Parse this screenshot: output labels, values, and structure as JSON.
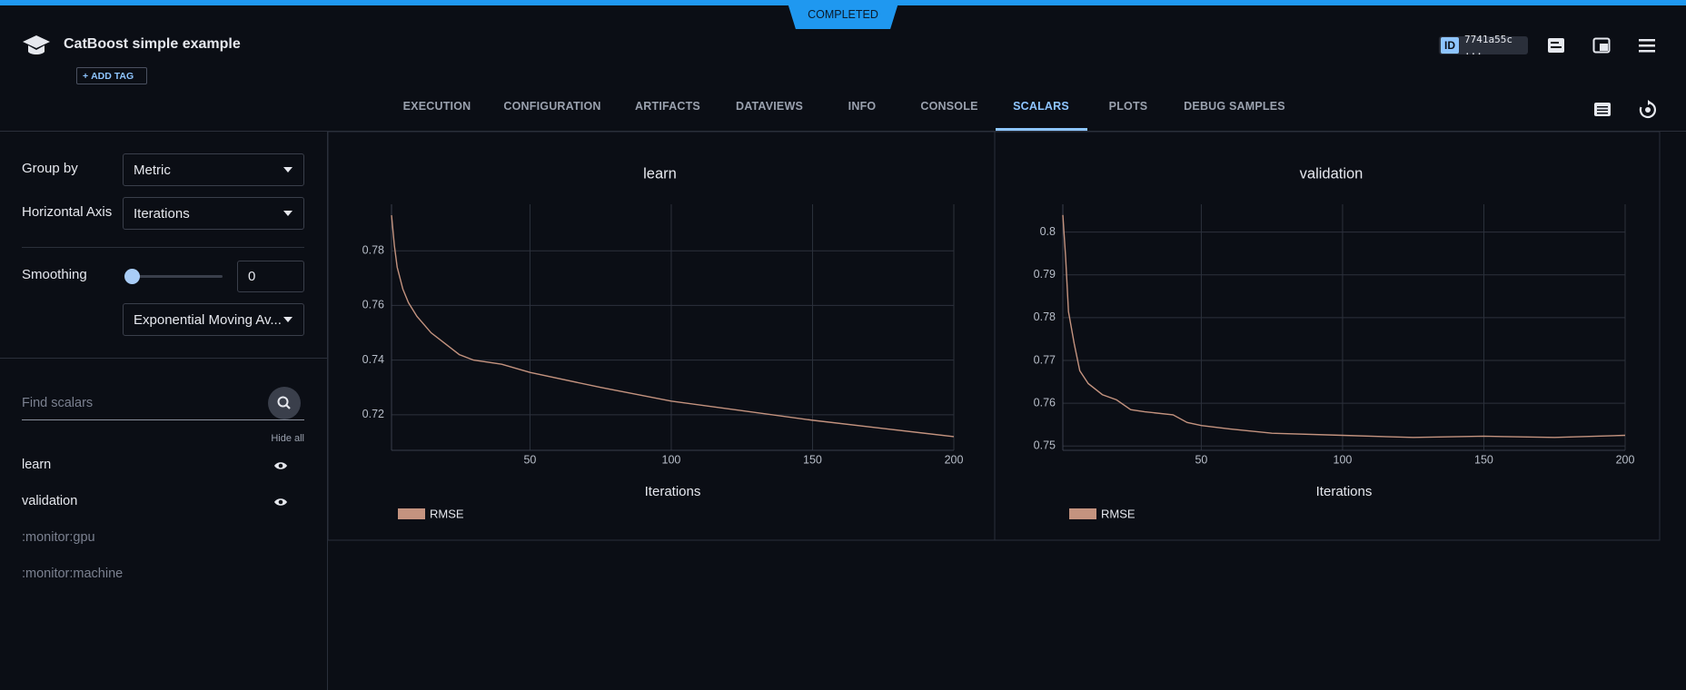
{
  "header": {
    "status": "COMPLETED",
    "title": "CatBoost simple example",
    "add_tag": "ADD TAG",
    "id_label": "ID",
    "id": "7741a55c ..."
  },
  "tabs": {
    "items": [
      "EXECUTION",
      "CONFIGURATION",
      "ARTIFACTS",
      "DATAVIEWS",
      "INFO",
      "CONSOLE",
      "SCALARS",
      "PLOTS",
      "DEBUG SAMPLES"
    ],
    "active": 6
  },
  "sidebar": {
    "group_by_label": "Group by",
    "group_by": "Metric",
    "horizontal_axis_label": "Horizontal Axis",
    "horizontal_axis": "Iterations",
    "smoothing_label": "Smoothing",
    "smoothing": 0,
    "smoothing_method": "Exponential Moving Av...",
    "search_placeholder": "Find scalars",
    "hide_all": "Hide all",
    "scalars": [
      {
        "name": "learn",
        "visible": true
      },
      {
        "name": "validation",
        "visible": true
      },
      {
        "name": ":monitor:gpu",
        "visible": false
      },
      {
        "name": ":monitor:machine",
        "visible": false
      }
    ]
  },
  "chart_data": [
    {
      "type": "line",
      "title": "learn",
      "x_label": "Iterations",
      "x": [
        1,
        2,
        3,
        5,
        7,
        10,
        15,
        20,
        25,
        30,
        40,
        50,
        75,
        100,
        125,
        150,
        175,
        200
      ],
      "series": [
        {
          "name": "RMSE",
          "color": "#c4937f",
          "values": [
            0.793,
            0.782,
            0.774,
            0.766,
            0.761,
            0.756,
            0.75,
            0.746,
            0.742,
            0.74,
            0.7385,
            0.7355,
            0.73,
            0.725,
            0.7215,
            0.718,
            0.715,
            0.712
          ]
        }
      ],
      "xlim": [
        1,
        200
      ],
      "xticks": [
        50,
        100,
        150,
        200
      ],
      "ylim": [
        0.707,
        0.797
      ],
      "yticks": [
        0.72,
        0.74,
        0.76,
        0.78
      ],
      "grid": true
    },
    {
      "type": "line",
      "title": "validation",
      "x_label": "Iterations",
      "x": [
        1,
        2,
        3,
        5,
        7,
        10,
        15,
        20,
        25,
        30,
        40,
        45,
        50,
        60,
        75,
        100,
        125,
        150,
        175,
        200
      ],
      "series": [
        {
          "name": "RMSE",
          "color": "#c4937f",
          "values": [
            0.804,
            0.794,
            0.7814,
            0.774,
            0.7676,
            0.7646,
            0.762,
            0.7608,
            0.7585,
            0.758,
            0.7573,
            0.7555,
            0.7548,
            0.754,
            0.753,
            0.7525,
            0.752,
            0.7523,
            0.752,
            0.7525
          ]
        }
      ],
      "xlim": [
        1,
        200
      ],
      "xticks": [
        50,
        100,
        150,
        200
      ],
      "ylim": [
        0.749,
        0.8065
      ],
      "yticks": [
        0.75,
        0.76,
        0.77,
        0.78,
        0.79,
        0.8
      ],
      "grid": true
    }
  ]
}
